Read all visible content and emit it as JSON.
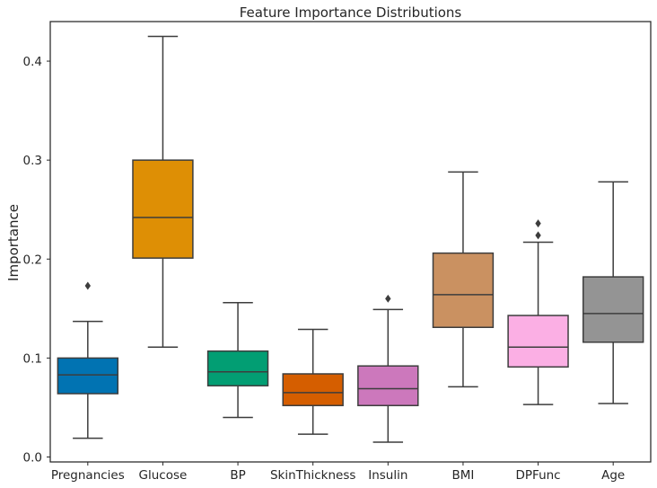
{
  "chart_data": {
    "type": "box",
    "title": "Feature Importance Distributions",
    "xlabel": "",
    "ylabel": "Importance",
    "ylim": [
      -0.005,
      0.44
    ],
    "yticks": [
      0.0,
      0.1,
      0.2,
      0.3,
      0.4
    ],
    "ytick_labels": [
      "0.0",
      "0.1",
      "0.2",
      "0.3",
      "0.4"
    ],
    "grid": false,
    "categories": [
      "Pregnancies",
      "Glucose",
      "BP",
      "SkinThickness",
      "Insulin",
      "BMI",
      "DPFunc",
      "Age"
    ],
    "boxes": [
      {
        "name": "Pregnancies",
        "whisker_low": 0.019,
        "q1": 0.064,
        "median": 0.083,
        "q3": 0.1,
        "whisker_high": 0.137,
        "outliers": [
          0.173
        ],
        "color": "#0173b2"
      },
      {
        "name": "Glucose",
        "whisker_low": 0.111,
        "q1": 0.201,
        "median": 0.242,
        "q3": 0.3,
        "whisker_high": 0.425,
        "outliers": [],
        "color": "#de8f05"
      },
      {
        "name": "BP",
        "whisker_low": 0.04,
        "q1": 0.072,
        "median": 0.086,
        "q3": 0.107,
        "whisker_high": 0.156,
        "outliers": [],
        "color": "#029e73"
      },
      {
        "name": "SkinThickness",
        "whisker_low": 0.023,
        "q1": 0.052,
        "median": 0.065,
        "q3": 0.084,
        "whisker_high": 0.129,
        "outliers": [],
        "color": "#d55e00"
      },
      {
        "name": "Insulin",
        "whisker_low": 0.015,
        "q1": 0.052,
        "median": 0.069,
        "q3": 0.092,
        "whisker_high": 0.149,
        "outliers": [
          0.16
        ],
        "color": "#cc78bc"
      },
      {
        "name": "BMI",
        "whisker_low": 0.071,
        "q1": 0.131,
        "median": 0.164,
        "q3": 0.206,
        "whisker_high": 0.288,
        "outliers": [],
        "color": "#ca9161"
      },
      {
        "name": "DPFunc",
        "whisker_low": 0.053,
        "q1": 0.091,
        "median": 0.111,
        "q3": 0.143,
        "whisker_high": 0.217,
        "outliers": [
          0.224,
          0.236
        ],
        "color": "#fbafe4"
      },
      {
        "name": "Age",
        "whisker_low": 0.054,
        "q1": 0.116,
        "median": 0.145,
        "q3": 0.182,
        "whisker_high": 0.278,
        "outliers": [],
        "color": "#949494"
      }
    ]
  }
}
